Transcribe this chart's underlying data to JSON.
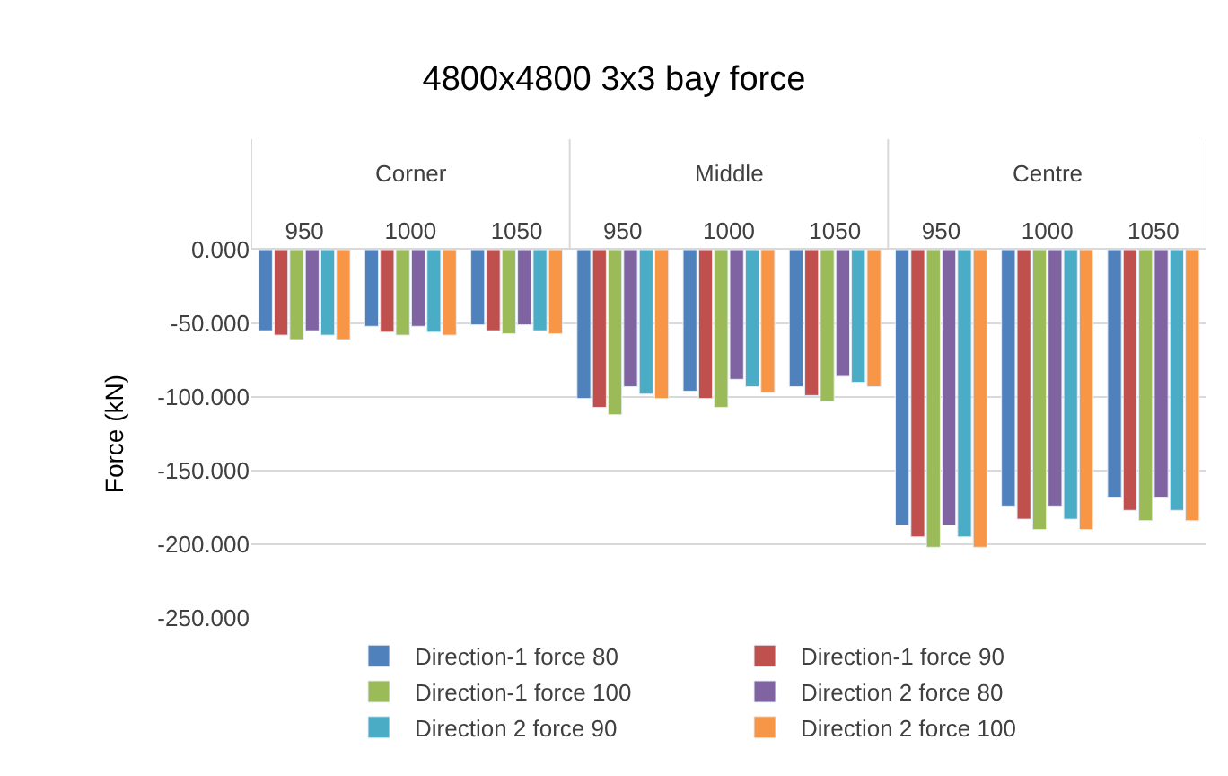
{
  "chart_data": {
    "type": "bar",
    "title": "4800x4800 3x3 bay force",
    "ylabel": "Force (kN)",
    "categories": [
      "950",
      "1000",
      "1050",
      "950",
      "1000",
      "1050",
      "950",
      "1000",
      "1050"
    ],
    "annotations": [
      "Corner",
      "Middle",
      "Centre"
    ],
    "series": [
      {
        "name": "Direction-1 force 80",
        "color": "#4f81bd",
        "values": [
          -55,
          -52,
          -51,
          -101,
          -96,
          -93,
          -187,
          -174,
          -168
        ]
      },
      {
        "name": "Direction-1 force 90",
        "color": "#c0504d",
        "values": [
          -58,
          -56,
          -55,
          -107,
          -101,
          -99,
          -195,
          -183,
          -177
        ]
      },
      {
        "name": "Direction-1 force 100",
        "color": "#9bbb59",
        "values": [
          -61,
          -58,
          -57,
          -112,
          -107,
          -103,
          -202,
          -190,
          -184
        ]
      },
      {
        "name": "Direction 2 force 80",
        "color": "#8064a2",
        "values": [
          -55,
          -52,
          -51,
          -93,
          -88,
          -86,
          -187,
          -174,
          -168
        ]
      },
      {
        "name": "Direction 2 force 90",
        "color": "#4bacc6",
        "values": [
          -58,
          -56,
          -55,
          -98,
          -93,
          -90,
          -195,
          -183,
          -177
        ]
      },
      {
        "name": "Direction 2 force 100",
        "color": "#f79646",
        "values": [
          -61,
          -58,
          -57,
          -101,
          -97,
          -93,
          -202,
          -190,
          -184
        ]
      }
    ],
    "ylim": [
      -250,
      0
    ],
    "yticks": [
      {
        "value": 0,
        "label": "0.000"
      },
      {
        "value": -50,
        "label": "-50.000"
      },
      {
        "value": -100,
        "label": "-100.000"
      },
      {
        "value": -150,
        "label": "-150.000"
      },
      {
        "value": -200,
        "label": "-200.000"
      },
      {
        "value": -250,
        "label": "-250.000"
      }
    ],
    "grid": "y",
    "legend": "bottom"
  }
}
